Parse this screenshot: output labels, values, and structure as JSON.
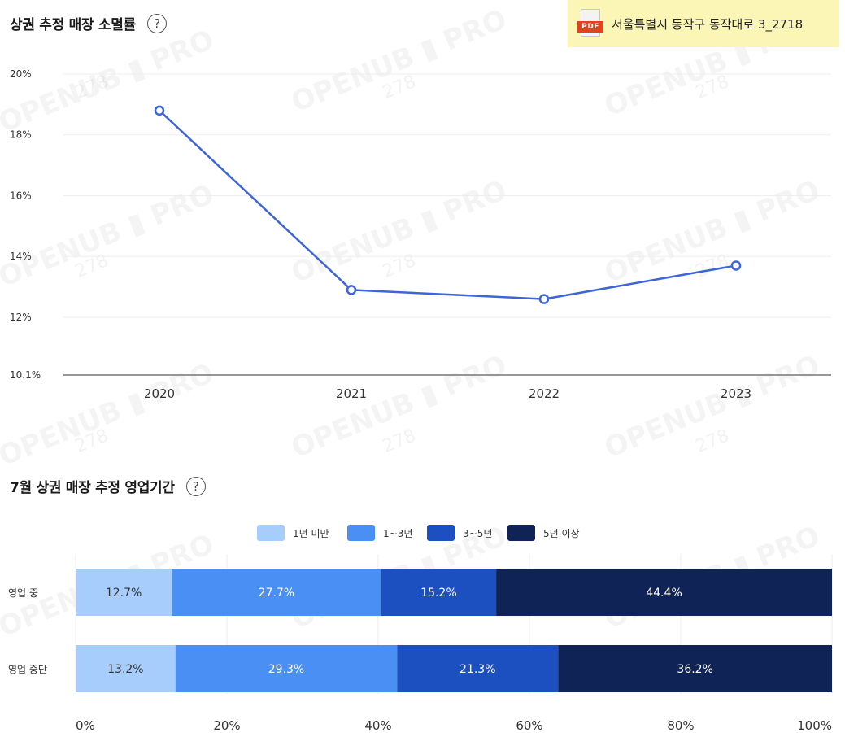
{
  "header": {
    "pdf_label": "PDF",
    "address": "서울특별시 동작구 동작대로 3_2718"
  },
  "line_section": {
    "title": "상권 추정 매장 소멸률",
    "help": "?"
  },
  "bar_section": {
    "title": "7월 상권 매장 추정 영업기간",
    "help": "?"
  },
  "watermark": {
    "text": "OPENUB ▮ PRO",
    "number": "278"
  },
  "chart_data": [
    {
      "type": "line",
      "title": "상권 추정 매장 소멸률",
      "x": [
        "2020",
        "2021",
        "2022",
        "2023"
      ],
      "values": [
        18.8,
        12.9,
        12.6,
        13.7
      ],
      "ylim": [
        10.1,
        20
      ],
      "yticks": [
        {
          "value": 20,
          "label": "20%"
        },
        {
          "value": 18,
          "label": "18%"
        },
        {
          "value": 16,
          "label": "16%"
        },
        {
          "value": 14,
          "label": "14%"
        },
        {
          "value": 12,
          "label": "12%"
        },
        {
          "value": 10.1,
          "label": "10.1%"
        }
      ],
      "grid": true,
      "color": "#3d64d9"
    },
    {
      "type": "bar",
      "stacked": true,
      "orientation": "horizontal",
      "title": "7월 상권 매장 추정 영업기간",
      "categories": [
        "영업 중",
        "영업 중단"
      ],
      "series": [
        {
          "name": "1년 미만",
          "color": "#a6cdfb",
          "values": [
            12.7,
            13.2
          ]
        },
        {
          "name": "1~3년",
          "color": "#4a8ff3",
          "values": [
            27.7,
            29.3
          ]
        },
        {
          "name": "3~5년",
          "color": "#1c4fc0",
          "values": [
            15.2,
            21.3
          ]
        },
        {
          "name": "5년 이상",
          "color": "#0f2356",
          "values": [
            44.4,
            36.2
          ]
        }
      ],
      "xlim": [
        0,
        100
      ],
      "xticks": [
        "0%",
        "20%",
        "40%",
        "60%",
        "80%",
        "100%"
      ],
      "legend": "top-center"
    }
  ]
}
